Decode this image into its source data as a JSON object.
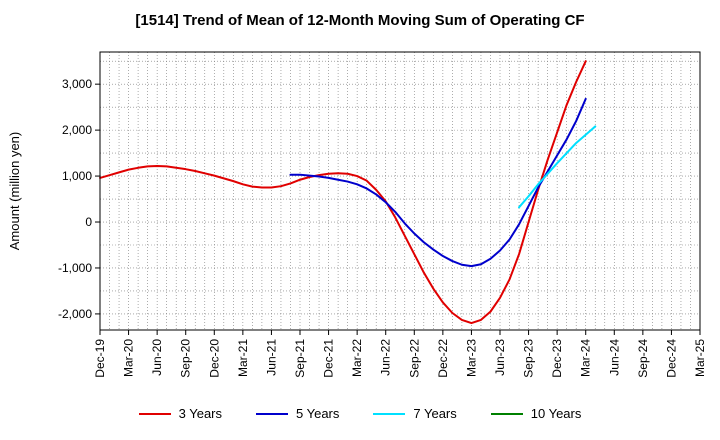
{
  "chart_data": {
    "type": "line",
    "title": "[1514]  Trend of Mean of 12-Month Moving Sum of Operating CF",
    "xlabel": "",
    "ylabel": "Amount (million yen)",
    "ylim": [
      -2350,
      3700
    ],
    "yticks": [
      -2000,
      -1000,
      0,
      1000,
      2000,
      3000
    ],
    "ytick_labels": [
      "-2,000",
      "-1,000",
      "0",
      "1,000",
      "2,000",
      "3,000"
    ],
    "x_months": [
      "Dec-19",
      "Jan-20",
      "Feb-20",
      "Mar-20",
      "Apr-20",
      "May-20",
      "Jun-20",
      "Jul-20",
      "Aug-20",
      "Sep-20",
      "Oct-20",
      "Nov-20",
      "Dec-20",
      "Jan-21",
      "Feb-21",
      "Mar-21",
      "Apr-21",
      "May-21",
      "Jun-21",
      "Jul-21",
      "Aug-21",
      "Sep-21",
      "Oct-21",
      "Nov-21",
      "Dec-21",
      "Jan-22",
      "Feb-22",
      "Mar-22",
      "Apr-22",
      "May-22",
      "Jun-22",
      "Jul-22",
      "Aug-22",
      "Sep-22",
      "Oct-22",
      "Nov-22",
      "Dec-22",
      "Jan-23",
      "Feb-23",
      "Mar-23",
      "Apr-23",
      "May-23",
      "Jun-23",
      "Jul-23",
      "Aug-23",
      "Sep-23",
      "Oct-23",
      "Nov-23",
      "Dec-23",
      "Jan-24",
      "Feb-24",
      "Mar-24",
      "Apr-24",
      "May-24",
      "Jun-24",
      "Jul-24",
      "Aug-24",
      "Sep-24",
      "Oct-24",
      "Nov-24",
      "Dec-24",
      "Jan-25",
      "Feb-25",
      "Mar-25"
    ],
    "xtick_labels": [
      "Dec-19",
      "Mar-20",
      "Jun-20",
      "Sep-20",
      "Dec-20",
      "Mar-21",
      "Jun-21",
      "Sep-21",
      "Dec-21",
      "Mar-22",
      "Jun-22",
      "Sep-22",
      "Dec-22",
      "Mar-23",
      "Jun-23",
      "Sep-23",
      "Dec-23",
      "Mar-24",
      "Jun-24",
      "Sep-24",
      "Dec-24",
      "Mar-25"
    ],
    "series": [
      {
        "name": "3 Years",
        "color": "#e00000",
        "start": "Dec-19",
        "values": [
          960,
          1020,
          1080,
          1140,
          1180,
          1210,
          1220,
          1210,
          1180,
          1150,
          1110,
          1060,
          1010,
          950,
          890,
          820,
          770,
          750,
          750,
          780,
          840,
          920,
          980,
          1020,
          1050,
          1060,
          1050,
          1000,
          900,
          700,
          450,
          100,
          -300,
          -700,
          -1100,
          -1450,
          -1750,
          -1980,
          -2130,
          -2200,
          -2130,
          -1950,
          -1650,
          -1250,
          -700,
          0,
          700,
          1350,
          1950,
          2550,
          3050,
          3500
        ]
      },
      {
        "name": "5 Years",
        "color": "#0000cc",
        "start": "Aug-21",
        "values": [
          1030,
          1030,
          1010,
          990,
          960,
          920,
          880,
          820,
          730,
          600,
          430,
          220,
          -30,
          -250,
          -440,
          -600,
          -740,
          -850,
          -930,
          -960,
          -920,
          -800,
          -620,
          -380,
          -50,
          350,
          750,
          1100,
          1450,
          1800,
          2200,
          2680
        ]
      },
      {
        "name": "7 Years",
        "color": "#00e0ff",
        "start": "Aug-23",
        "values": [
          320,
          560,
          820,
          1050,
          1280,
          1500,
          1720,
          1900,
          2080
        ]
      },
      {
        "name": "10 Years",
        "color": "#008000",
        "start": null,
        "values": []
      }
    ],
    "legend_position": "bottom-center",
    "grid": true
  }
}
